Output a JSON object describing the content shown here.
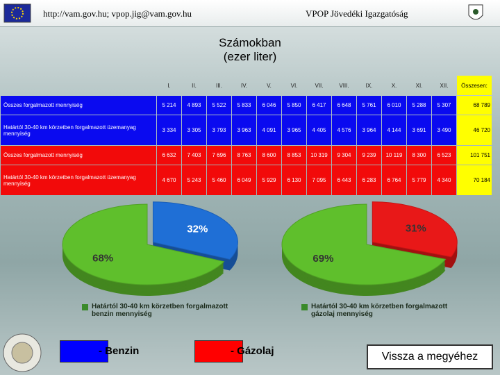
{
  "header": {
    "url": "http://vam.gov.hu; vpop.jig@vam.gov.hu",
    "org": "VPOP Jövedéki Igazgatóság"
  },
  "title": "Számokban",
  "subtitle": "(ezer liter)",
  "table": {
    "columns": [
      "I.",
      "II.",
      "III.",
      "IV.",
      "V.",
      "VI.",
      "VII.",
      "VIII.",
      "IX.",
      "X.",
      "XI.",
      "XII.",
      "Összesen:"
    ],
    "rows": [
      {
        "label": "Összes forgalmazott mennyiség",
        "cells": [
          "5 214",
          "4 893",
          "5 522",
          "5 833",
          "6 046",
          "5 850",
          "6 417",
          "6 648",
          "5 761",
          "6 010",
          "5 288",
          "5 307",
          "68 789"
        ]
      },
      {
        "label": "Határtól 30-40 km körzetben forgalmazott üzemanyag mennyiség",
        "cells": [
          "3 334",
          "3 305",
          "3 793",
          "3 963",
          "4 091",
          "3 965",
          "4 405",
          "4 576",
          "3 964",
          "4 144",
          "3 691",
          "3 490",
          "46 720"
        ]
      },
      {
        "label": "Összes forgalmazott mennyiség",
        "cells": [
          "6 632",
          "7 403",
          "7 696",
          "8 763",
          "8 600",
          "8 853",
          "10 319",
          "9 304",
          "9 239",
          "10 119",
          "8 300",
          "6 523",
          "101 751"
        ]
      },
      {
        "label": "Határtól 30-40 km körzetben forgalmazott üzemanyag mennyiség",
        "cells": [
          "4 670",
          "5 243",
          "5 460",
          "6 049",
          "5 929",
          "6 130",
          "7 095",
          "6 443",
          "6 283",
          "6 764",
          "5 779",
          "4 340",
          "70 184"
        ]
      }
    ]
  },
  "chart_data": [
    {
      "type": "pie",
      "categories": [
        null,
        "Határtól 30-40 km körzetben forgalmazott benzin mennyiség"
      ],
      "values": [
        32,
        68
      ],
      "value_labels": [
        "32%",
        "68%"
      ],
      "colors": [
        "#1f6fd6",
        "#5fbf2c"
      ]
    },
    {
      "type": "pie",
      "categories": [
        null,
        "Határtól 30-40 km körzetben forgalmazott gázolaj mennyiség"
      ],
      "values": [
        31,
        69
      ],
      "value_labels": [
        "31%",
        "69%"
      ],
      "colors": [
        "#e81818",
        "#5fbf2c"
      ]
    }
  ],
  "legend": [
    "- Benzin",
    "- Gázolaj"
  ],
  "button": "Vissza a megyéhez"
}
